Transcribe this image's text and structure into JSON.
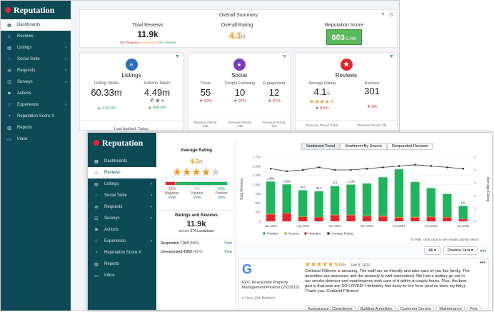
{
  "app": {
    "name": "Reputation"
  },
  "back": {
    "nav": [
      {
        "label": "Dashboards",
        "icon": "dashboard-icon",
        "glyph": "▦",
        "chev": false
      },
      {
        "label": "Reviews",
        "icon": "star-icon",
        "glyph": "☆",
        "chev": false
      },
      {
        "label": "Listings",
        "icon": "listings-icon",
        "glyph": "▤",
        "chev": true
      },
      {
        "label": "Social Suite",
        "icon": "social-icon",
        "glyph": "◌",
        "chev": true
      },
      {
        "label": "Requests",
        "icon": "requests-icon",
        "glyph": "✉",
        "chev": true
      },
      {
        "label": "Surveys",
        "icon": "surveys-icon",
        "glyph": "☑",
        "chev": true
      },
      {
        "label": "Actions",
        "icon": "actions-icon",
        "glyph": "⚑",
        "chev": false
      },
      {
        "label": "Experience",
        "icon": "experience-icon",
        "glyph": "♡",
        "chev": true
      },
      {
        "label": "Reputation Score X",
        "icon": "score-icon",
        "glyph": "◔",
        "chev": false
      },
      {
        "label": "Reports",
        "icon": "reports-icon",
        "glyph": "▥",
        "chev": false
      },
      {
        "label": "Inbox",
        "icon": "inbox-icon",
        "glyph": "▭",
        "chev": false
      }
    ],
    "summary": {
      "title": "Overall Summary",
      "total_reviews_label": "Total Reviews",
      "total_reviews": "11.9k",
      "negative": "15% Negative",
      "neutral": "2% Neutral",
      "positive": "83% Positive",
      "rating_label": "Overall Rating",
      "rating": "4.3",
      "rating_suffix": "/5",
      "score_label": "Reputation Score",
      "score": "603",
      "score_suffix": "/1,000"
    },
    "listings": {
      "title": "Listings",
      "views_label": "Listing Views",
      "views": "60.33m",
      "views_change": "▲ 179.1%",
      "actions_label": "Actions Taken",
      "actions": "4.49m",
      "actions_change": "▲ 508.4%",
      "audited": "Last Audited: Today"
    },
    "social": {
      "title": "Social",
      "posts_label": "Posts",
      "posts": "55",
      "posts_change": "▼ 59%",
      "posts_prev_label": "Previous Period:",
      "posts_prev": "135",
      "following_label": "People Following",
      "following": "10",
      "following_change": "▼ 97%",
      "following_prev_label": "Previous Period:",
      "following_prev": "348",
      "engagement_label": "Engagement",
      "engagement": "12",
      "engagement_change": "▼ 97%",
      "engagement_prev_label": "Previous Period:",
      "engagement_prev": "412"
    },
    "reviews": {
      "title": "Reviews",
      "avg_label": "Average Rating",
      "avg": "4.1",
      "avg_suffix": "/5",
      "avg_change": "▼ 8.5%",
      "avg_prev": "Previous Period: 4.5/5",
      "count_label": "Reviews",
      "count": "301",
      "count_change": "▼ 9%",
      "count_prev": "Previous Period: 331"
    }
  },
  "front": {
    "nav": [
      {
        "label": "Dashboards",
        "icon": "dashboard-icon",
        "glyph": "▦",
        "chev": false
      },
      {
        "label": "Reviews",
        "icon": "star-icon",
        "glyph": "☆",
        "chev": false
      },
      {
        "label": "Listings",
        "icon": "listings-icon",
        "glyph": "▤",
        "chev": true
      },
      {
        "label": "Social Suite",
        "icon": "social-icon",
        "glyph": "◌",
        "chev": true
      },
      {
        "label": "Requests",
        "icon": "requests-icon",
        "glyph": "✉",
        "chev": true
      },
      {
        "label": "Surveys",
        "icon": "surveys-icon",
        "glyph": "☑",
        "chev": true
      },
      {
        "label": "Actions",
        "icon": "actions-icon",
        "glyph": "⚑",
        "chev": false
      },
      {
        "label": "Experience",
        "icon": "experience-icon",
        "glyph": "♡",
        "chev": true
      },
      {
        "label": "Reputation Score X",
        "icon": "score-icon",
        "glyph": "◔",
        "chev": false
      },
      {
        "label": "Reports",
        "icon": "reports-icon",
        "glyph": "▥",
        "chev": false
      },
      {
        "label": "Inbox",
        "icon": "inbox-icon",
        "glyph": "▭",
        "chev": false
      }
    ],
    "side_labels": [
      "Average Rating",
      "Average Rating"
    ],
    "rating": {
      "title": "Average Rating",
      "value": "4.3",
      "suffix": "/5",
      "negative_pct": "15%",
      "negative_label": "Negative",
      "neutral_pct": "2%",
      "neutral_label": "Neutral",
      "positive_pct": "83%",
      "positive_label": "Positive",
      "view": "View",
      "neg_frac": 0.15,
      "neu_frac": 0.02,
      "pos_frac": 0.83
    },
    "ratings_reviews": {
      "title": "Ratings and Reviews",
      "value": "11.9k",
      "across": "across",
      "locations": "274 Locations",
      "responded_label": "Responded",
      "responded": "7,045",
      "responded_pct": "(59%)",
      "unresponded_label": "Unresponded",
      "unresponded": "4,860",
      "unresponded_pct": "(41%)",
      "view": "View"
    },
    "tabs": [
      "Sentiment Trend",
      "Sentiment By Source",
      "Responded Reviews"
    ],
    "chart_hint": "To Filter: click a bar to see related activity below",
    "filter_all": "All",
    "filter_sort": "Positive First",
    "review": {
      "company": "RDC Real Estate Property Management Phoenix (2523815)",
      "user": "User_Kim Broback",
      "rating": "5.0",
      "suffix": "/5",
      "date": "Feb 8, 2021",
      "text": "Cortland Fillmore is amazing. The staff are so friendly and take care of you like family. The amenities are awesome and the property is well-maintained. We had a battery go out in our smoke detector and maintenance took care of it within a couple hours. Plus, the best part is that pets are SO LOVED! I definitely feel lucky to live here (and so does my kitty). Thank you, Cortland Fillmore!",
      "tags": [
        "Appearance / Cleanliness",
        "Building Amenities",
        "Customer Service",
        "Maintenance",
        "Pets"
      ]
    }
  },
  "chart_data": {
    "type": "bar",
    "stacked": true,
    "categories": [
      "Jun 2020",
      "",
      "Aug 2020",
      "",
      "Oct 2020",
      "",
      "Dec 2020",
      "",
      "Jan 2021",
      "",
      "Jun 2021",
      "",
      "Jan 2021"
    ],
    "series": [
      {
        "name": "Positive",
        "color": "#22b35e",
        "values": [
          880,
          780,
          720,
          700,
          780,
          820,
          880,
          1050,
          1300,
          950,
          780,
          630,
          360
        ]
      },
      {
        "name": "Neutral",
        "color": "#f29a1f",
        "values": [
          15,
          12,
          10,
          10,
          12,
          12,
          15,
          18,
          20,
          15,
          12,
          10,
          5
        ]
      },
      {
        "name": "Negative",
        "color": "#e0262d",
        "values": [
          188,
          214,
          117,
          107,
          169,
          168,
          137,
          133,
          97,
          105,
          114,
          106,
          56
        ]
      }
    ],
    "bar_labels": [
      "1,083",
      "1,006",
      "847",
      "817",
      "971",
      "1,010",
      "",
      "",
      "",
      "",
      "",
      "",
      "421"
    ],
    "avg_rating_line": {
      "name": "Average Rating",
      "color": "#333333",
      "values": [
        4.1,
        3.9,
        4.0,
        4.2,
        4.0,
        4.0,
        4.1,
        4.2,
        4.3,
        4.4,
        4.3,
        4.2,
        4.1
      ]
    },
    "ylabel": "Total Reviews",
    "y2label": "Average Rating",
    "y_ticks": [
      "1,750",
      "1,500",
      "1,250",
      "1,000",
      "750",
      "500",
      "250",
      "0"
    ],
    "y2_ticks": [
      "5",
      "4",
      "3",
      "2",
      "1",
      "0"
    ],
    "ylim": [
      0,
      1750
    ]
  }
}
